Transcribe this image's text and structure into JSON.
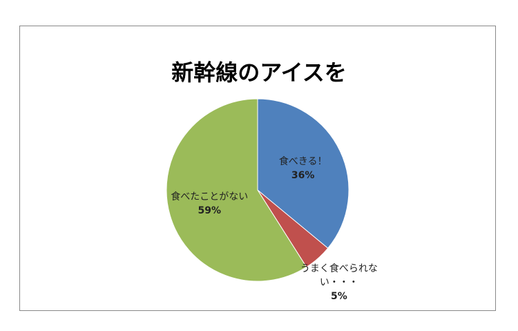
{
  "chart_data": {
    "type": "pie",
    "title": "新幹線のアイスを",
    "categories": [
      "食べきる！",
      "うまく食べられない・・・",
      "食べたことがない"
    ],
    "values": [
      36,
      5,
      59
    ],
    "value_labels": [
      "36%",
      "5%",
      "59%"
    ],
    "colors": [
      "#4f81bd",
      "#c0504d",
      "#9bbb59"
    ]
  }
}
